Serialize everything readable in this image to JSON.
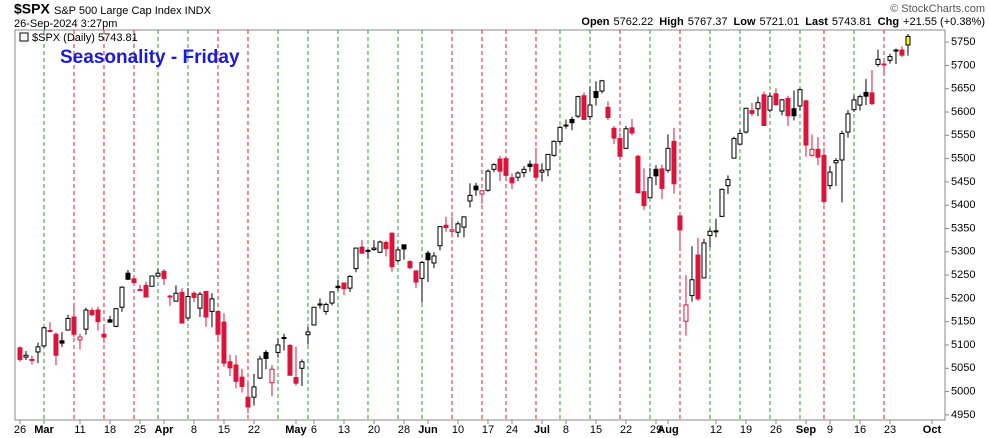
{
  "header": {
    "symbol": "$SPX",
    "name": "S&P 500 Large Cap Index INDX",
    "datetime": "26-Sep-2024 3:27pm",
    "copyright": "© StockCharts.com",
    "quote": [
      {
        "label": "Open",
        "value": "5762.22"
      },
      {
        "label": "High",
        "value": "5767.37"
      },
      {
        "label": "Low",
        "value": "5721.01"
      },
      {
        "label": "Last",
        "value": "5743.81"
      },
      {
        "label": "Chg",
        "value": "+21.55 (+0.38%)"
      }
    ]
  },
  "chart_data": {
    "type": "candlestick",
    "legend": "$SPX (Daily) 5743.81",
    "annotation": "Seasonality - Friday",
    "up_color": "#000000",
    "down_color": "#dc143c",
    "highlight_color": "#ffff00",
    "xlim": [
      -0.83,
      154.17
    ],
    "ylim": [
      4939,
      5776
    ],
    "yticks": [
      4950,
      5000,
      5050,
      5100,
      5150,
      5200,
      5250,
      5300,
      5350,
      5400,
      5450,
      5500,
      5550,
      5600,
      5650,
      5700,
      5750
    ],
    "xticks": [
      {
        "value": 0,
        "label": "26"
      },
      {
        "value": 4,
        "label": "Mar"
      },
      {
        "value": 10,
        "label": "11"
      },
      {
        "value": 15,
        "label": "18"
      },
      {
        "value": 20,
        "label": "25"
      },
      {
        "value": 24,
        "label": "Apr"
      },
      {
        "value": 29,
        "label": "8"
      },
      {
        "value": 34,
        "label": "15"
      },
      {
        "value": 39,
        "label": "22"
      },
      {
        "value": 46,
        "label": "May"
      },
      {
        "value": 49,
        "label": "6"
      },
      {
        "value": 54,
        "label": "13"
      },
      {
        "value": 59,
        "label": "20"
      },
      {
        "value": 64,
        "label": "28"
      },
      {
        "value": 68,
        "label": "Jun"
      },
      {
        "value": 73,
        "label": "10"
      },
      {
        "value": 78,
        "label": "17"
      },
      {
        "value": 82,
        "label": "24"
      },
      {
        "value": 87,
        "label": "Jul"
      },
      {
        "value": 91,
        "label": "8"
      },
      {
        "value": 96,
        "label": "15"
      },
      {
        "value": 101,
        "label": "22"
      },
      {
        "value": 106,
        "label": "29"
      },
      {
        "value": 108,
        "label": "Aug"
      },
      {
        "value": 116,
        "label": "12"
      },
      {
        "value": 121,
        "label": "19"
      },
      {
        "value": 126,
        "label": "26"
      },
      {
        "value": 131,
        "label": "Sep"
      },
      {
        "value": 135,
        "label": "9"
      },
      {
        "value": 140,
        "label": "16"
      },
      {
        "value": 145,
        "label": "23"
      },
      {
        "value": 152,
        "label": "Oct"
      }
    ],
    "vlines": [
      {
        "value": 4,
        "color": "#2e9e2e"
      },
      {
        "value": 9,
        "color": "#e0202a"
      },
      {
        "value": 14,
        "color": "#e0202a"
      },
      {
        "value": 19,
        "color": "#e0202a"
      },
      {
        "value": 23,
        "color": "#2e9e2e"
      },
      {
        "value": 28,
        "color": "#2e9e2e"
      },
      {
        "value": 33,
        "color": "#e0202a"
      },
      {
        "value": 38,
        "color": "#e0202a"
      },
      {
        "value": 43,
        "color": "#2e9e2e"
      },
      {
        "value": 48,
        "color": "#2e9e2e"
      },
      {
        "value": 53,
        "color": "#2e9e2e"
      },
      {
        "value": 58,
        "color": "#2e9e2e"
      },
      {
        "value": 63,
        "color": "#2e9e2e"
      },
      {
        "value": 67,
        "color": "#2e9e2e"
      },
      {
        "value": 72,
        "color": "#e0202a"
      },
      {
        "value": 77,
        "color": "#e0202a"
      },
      {
        "value": 81,
        "color": "#e0202a"
      },
      {
        "value": 86,
        "color": "#e0202a"
      },
      {
        "value": 90,
        "color": "#2e9e2e"
      },
      {
        "value": 95,
        "color": "#2e9e2e"
      },
      {
        "value": 100,
        "color": "#e0202a"
      },
      {
        "value": 105,
        "color": "#2e9e2e"
      },
      {
        "value": 110,
        "color": "#e0202a"
      },
      {
        "value": 115,
        "color": "#2e9e2e"
      },
      {
        "value": 120,
        "color": "#2e9e2e"
      },
      {
        "value": 125,
        "color": "#2e9e2e"
      },
      {
        "value": 130,
        "color": "#2e9e2e"
      },
      {
        "value": 134,
        "color": "#e0202a"
      },
      {
        "value": 139,
        "color": "#2e9e2e"
      },
      {
        "value": 144,
        "color": "#e0202a"
      }
    ],
    "open": [
      5094,
      5074,
      5068,
      5085,
      5098,
      5131,
      5123,
      5109,
      5132,
      5160,
      5111,
      5134,
      5174,
      5175,
      5123,
      5154,
      5140,
      5181,
      5254,
      5242,
      5219,
      5228,
      5226,
      5248,
      5258,
      5204,
      5194,
      5213,
      5158,
      5211,
      5179,
      5215,
      5172,
      5172,
      5149,
      5064,
      5057,
      5031,
      4988,
      4988,
      5029,
      5084,
      5019,
      5084,
      5115,
      5099,
      5030,
      5050,
      5122,
      5143,
      5188,
      5172,
      5190,
      5226,
      5233,
      5222,
      5264,
      5310,
      5303,
      5305,
      5299,
      5320,
      5340,
      5281,
      5315,
      5279,
      5259,
      5243,
      5297,
      5276,
      5313,
      5357,
      5344,
      5342,
      5353,
      5409,
      5441,
      5424,
      5432,
      5477,
      5499,
      5500,
      5459,
      5460,
      5470,
      5488,
      5488,
      5471,
      5476,
      5507,
      5537,
      5572,
      5584,
      5591,
      5635,
      5590,
      5644,
      5645,
      5610,
      5565,
      5543,
      5522,
      5566,
      5505,
      5429,
      5416,
      5477,
      5478,
      5475,
      5537,
      5377,
      5151,
      5206,
      5293,
      5244,
      5335,
      5345,
      5376,
      5442,
      5501,
      5531,
      5557,
      5603,
      5607,
      5637,
      5604,
      5639,
      5602,
      5629,
      5607,
      5613,
      5624,
      5507,
      5520,
      5507,
      5442,
      5491,
      5497,
      5557,
      5605,
      5615,
      5642,
      5641,
      5702,
      5702,
      5711,
      5733,
      5733,
      5762.22
    ],
    "high": [
      5097,
      5087,
      5077,
      5105,
      5140,
      5149,
      5127,
      5128,
      5165,
      5189,
      5124,
      5180,
      5180,
      5182,
      5137,
      5162,
      5179,
      5226,
      5261,
      5246,
      5229,
      5236,
      5249,
      5264,
      5263,
      5208,
      5228,
      5222,
      5222,
      5215,
      5214,
      5216,
      5211,
      5175,
      5168,
      5079,
      5078,
      5049,
      5019,
      5038,
      5077,
      5089,
      5057,
      5114,
      5124,
      5102,
      5096,
      5069,
      5139,
      5181,
      5200,
      5191,
      5215,
      5240,
      5234,
      5250,
      5309,
      5325,
      5306,
      5325,
      5324,
      5324,
      5341,
      5311,
      5315,
      5282,
      5260,
      5280,
      5302,
      5299,
      5355,
      5375,
      5376,
      5365,
      5376,
      5447,
      5448,
      5432,
      5477,
      5490,
      5506,
      5505,
      5468,
      5473,
      5484,
      5496,
      5523,
      5490,
      5510,
      5539,
      5570,
      5584,
      5590,
      5635,
      5642,
      5655,
      5666,
      5669,
      5623,
      5570,
      5555,
      5570,
      5585,
      5508,
      5479,
      5480,
      5486,
      5487,
      5552,
      5566,
      5383,
      5250,
      5312,
      5330,
      5328,
      5351,
      5371,
      5436,
      5464,
      5547,
      5562,
      5609,
      5620,
      5633,
      5644,
      5642,
      5651,
      5628,
      5635,
      5646,
      5651,
      5626,
      5552,
      5546,
      5523,
      5484,
      5501,
      5560,
      5604,
      5636,
      5637,
      5671,
      5690,
      5734,
      5716,
      5725,
      5736,
      5741,
      5767.37
    ],
    "low": [
      5064,
      5068,
      5058,
      5061,
      5094,
      5127,
      5057,
      5096,
      5131,
      5117,
      5091,
      5122,
      5162,
      5131,
      5104,
      5148,
      5138,
      5171,
      5240,
      5230,
      5216,
      5203,
      5225,
      5246,
      5229,
      5184,
      5194,
      5146,
      5152,
      5192,
      5160,
      5139,
      5138,
      5108,
      5053,
      5033,
      5007,
      4998,
      4953,
      4970,
      5027,
      5048,
      4990,
      5073,
      5088,
      5034,
      5013,
      5012,
      5101,
      5142,
      5178,
      5165,
      5185,
      5216,
      5207,
      5214,
      5256,
      5296,
      5284,
      5302,
      5297,
      5290,
      5257,
      5278,
      5283,
      5262,
      5222,
      5191,
      5235,
      5265,
      5303,
      5343,
      5331,
      5331,
      5331,
      5395,
      5420,
      5403,
      5429,
      5471,
      5452,
      5452,
      5435,
      5452,
      5460,
      5472,
      5458,
      5451,
      5462,
      5504,
      5531,
      5564,
      5561,
      5587,
      5583,
      5583,
      5614,
      5640,
      5583,
      5531,
      5497,
      5521,
      5550,
      5425,
      5390,
      5416,
      5443,
      5413,
      5470,
      5425,
      5306,
      5120,
      5193,
      5195,
      5244,
      5310,
      5331,
      5376,
      5424,
      5501,
      5530,
      5554,
      5591,
      5591,
      5570,
      5599,
      5613,
      5593,
      5570,
      5582,
      5603,
      5504,
      5504,
      5486,
      5402,
      5434,
      5441,
      5406,
      5545,
      5600,
      5603,
      5615,
      5615,
      5697,
      5682,
      5704,
      5703,
      5718,
      5721.01
    ],
    "close": [
      5069,
      5078,
      5069,
      5096,
      5137,
      5130,
      5078,
      5104,
      5157,
      5123,
      5117,
      5175,
      5165,
      5150,
      5117,
      5149,
      5178,
      5224,
      5241,
      5234,
      5218,
      5203,
      5248,
      5254,
      5243,
      5205,
      5211,
      5147,
      5204,
      5202,
      5209,
      5160,
      5199,
      5123,
      5061,
      5051,
      5022,
      5011,
      4967,
      5010,
      5070,
      5071,
      5048,
      5100,
      5116,
      5035,
      5018,
      5064,
      5128,
      5181,
      5187,
      5187,
      5214,
      5223,
      5221,
      5247,
      5308,
      5297,
      5303,
      5308,
      5321,
      5307,
      5268,
      5304,
      5306,
      5266,
      5235,
      5277,
      5283,
      5291,
      5354,
      5352,
      5347,
      5360,
      5375,
      5421,
      5433,
      5431,
      5473,
      5487,
      5473,
      5464,
      5448,
      5469,
      5477,
      5483,
      5460,
      5475,
      5509,
      5537,
      5567,
      5572,
      5577,
      5633,
      5584,
      5615,
      5631,
      5667,
      5588,
      5544,
      5505,
      5564,
      5555,
      5427,
      5399,
      5459,
      5463,
      5436,
      5522,
      5446,
      5347,
      5186,
      5240,
      5199,
      5319,
      5344,
      5344,
      5434,
      5455,
      5543,
      5554,
      5608,
      5597,
      5620,
      5571,
      5634,
      5616,
      5626,
      5592,
      5592,
      5648,
      5529,
      5520,
      5503,
      5408,
      5471,
      5496,
      5554,
      5596,
      5626,
      5633,
      5634,
      5618,
      5713,
      5703,
      5719,
      5732,
      5722,
      5743.81
    ]
  }
}
